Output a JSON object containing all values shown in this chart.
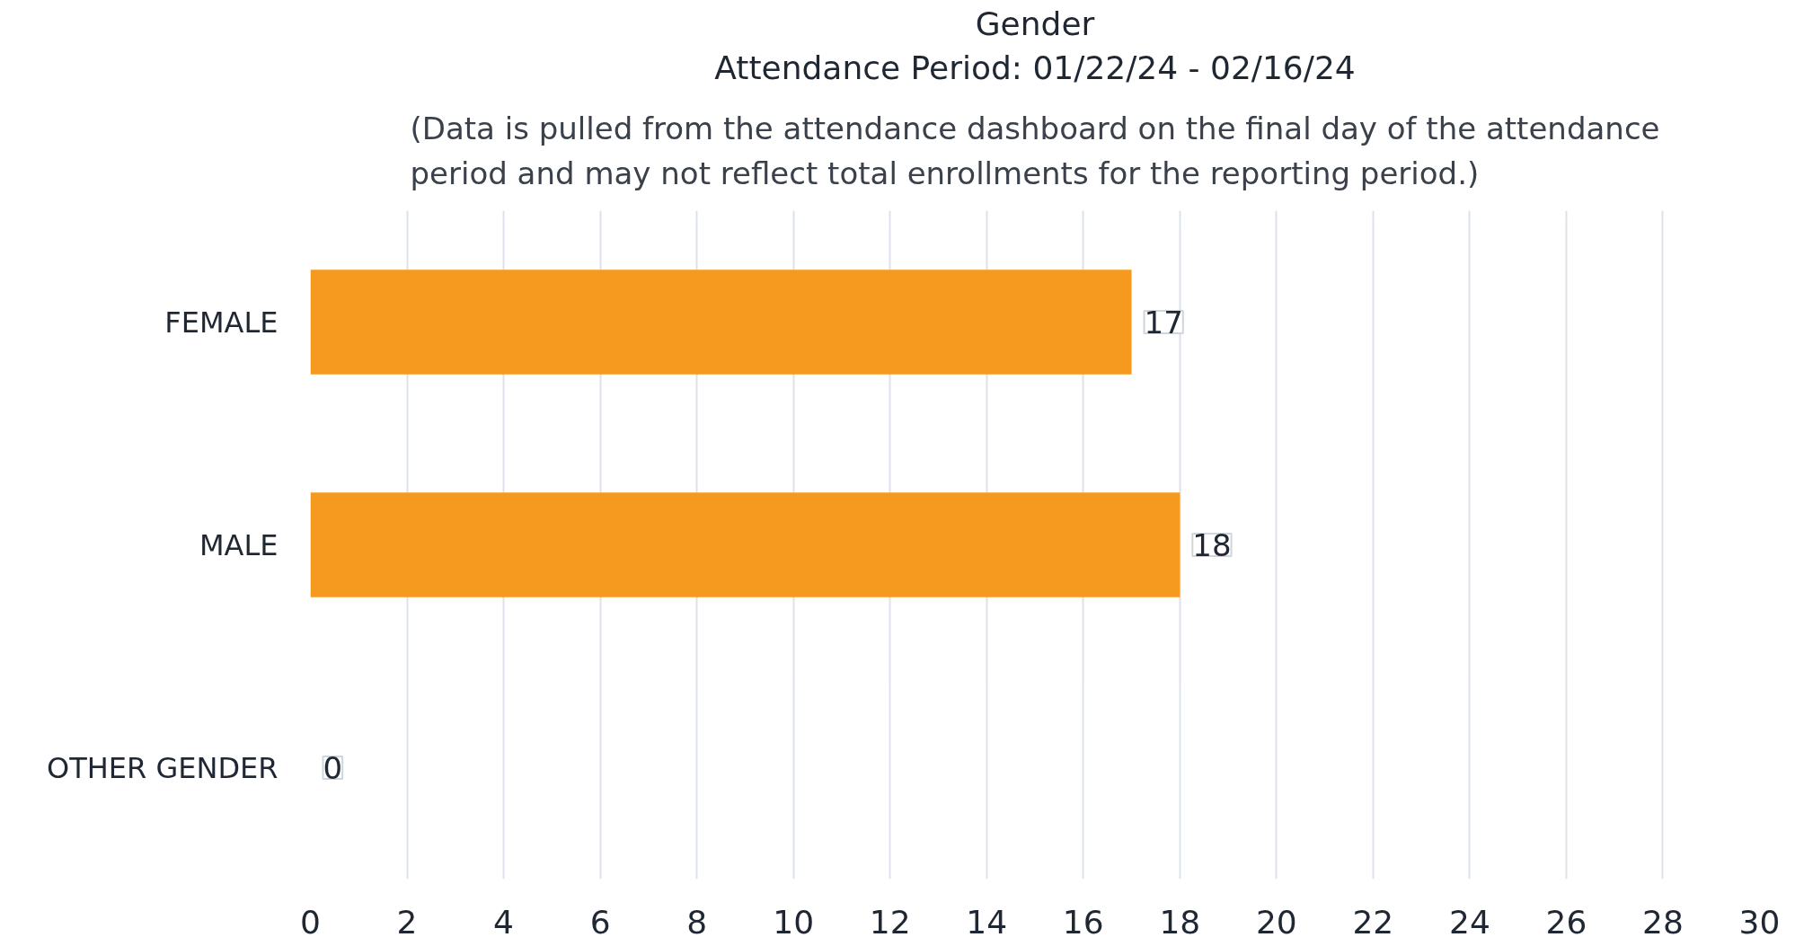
{
  "chart_data": {
    "type": "bar",
    "orientation": "horizontal",
    "title": "Gender",
    "subtitle": "Attendance Period: 01/22/24 - 02/16/24",
    "annotations": [
      "(Data is pulled from the attendance dashboard on the final day of the attendance period and may not reflect total enrollments for the reporting period.)"
    ],
    "categories": [
      "FEMALE",
      "MALE",
      "OTHER GENDER"
    ],
    "values": [
      17,
      18,
      0
    ],
    "color": "#f59a1e",
    "xlim": [
      0,
      30
    ],
    "xticks": [
      0,
      2,
      4,
      6,
      8,
      10,
      12,
      14,
      16,
      18,
      20,
      22,
      24,
      26,
      28,
      30
    ],
    "grid": "x",
    "data_labels": true
  }
}
